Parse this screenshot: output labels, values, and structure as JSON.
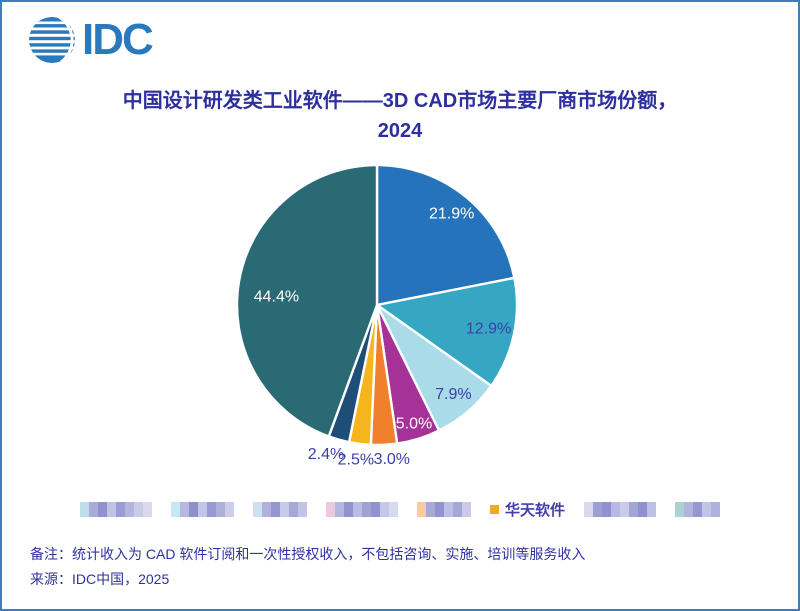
{
  "logo": {
    "text": "IDC",
    "color": "#2979be"
  },
  "title": {
    "line1": "中国设计研发类工业软件——3D CAD市场主要厂商市场份额，",
    "line2": "2024",
    "color": "#2e2f9e"
  },
  "chart_data": {
    "type": "pie",
    "title": "中国设计研发类工业软件——3D CAD市场主要厂商市场份额，2024",
    "unit": "%",
    "start_angle_deg": 0,
    "direction": "clockwise",
    "total": 100.0,
    "slices": [
      {
        "name": "censored-vendor-1",
        "value": 21.9,
        "label": "21.9%",
        "color": "#2574BB",
        "label_color": "#FFFFFF",
        "label_r": 0.84
      },
      {
        "name": "censored-vendor-2",
        "value": 12.9,
        "label": "12.9%",
        "color": "#35A7C3",
        "label_color": "#3B3FA9",
        "label_r": 0.815
      },
      {
        "name": "censored-vendor-3",
        "value": 7.9,
        "label": "7.9%",
        "color": "#A9DBE8",
        "label_color": "#3B3FA9",
        "label_r": 0.84
      },
      {
        "name": "censored-vendor-4",
        "value": 5.0,
        "label": "5.0%",
        "color": "#A53397",
        "label_color": "#FFFFFF",
        "label_r": 0.89
      },
      {
        "name": "censored-vendor-5",
        "value": 3.0,
        "label": "3.0%",
        "color": "#F0802C",
        "label_color": "#3B3FA9",
        "label_r": 1.105,
        "label_dx": 7
      },
      {
        "name": "华天软件",
        "value": 2.5,
        "label": "2.5%",
        "color": "#F6B51C",
        "label_color": "#3B3FA9",
        "label_r": 1.114,
        "label_dx": -2
      },
      {
        "name": "censored-vendor-6",
        "value": 2.4,
        "label": "2.4%",
        "color": "#1E4D78",
        "label_color": "#3B3FA9",
        "label_r": 1.125,
        "label_dx": -8,
        "label_dy": -2
      },
      {
        "name": "censored-vendor-7",
        "value": 44.4,
        "label": "44.4%",
        "color": "#2A6A74",
        "label_color": "#FFFFFF",
        "label_r": 0.73,
        "label_dy": 10
      }
    ],
    "legend_position": "bottom"
  },
  "legend": {
    "text_color": "#4340AC",
    "items": [
      {
        "censored": true,
        "blocks": [
          "#BFDDE9",
          "#A9ABD9",
          "#8F92CC",
          "#C0C2E6",
          "#9A9DD3",
          "#B3B5DF",
          "#C9CBE9",
          "#D9DAEF"
        ]
      },
      {
        "censored": true,
        "blocks": [
          "#C5E9F0",
          "#B6B8E1",
          "#8D90CB",
          "#C3C5E8",
          "#9799D1",
          "#AEB0DC",
          "#CDCEEB"
        ]
      },
      {
        "censored": true,
        "blocks": [
          "#CFE0F2",
          "#B0B2DD",
          "#9496CF",
          "#C8CAE9",
          "#A6A8D8",
          "#C2C4E7"
        ]
      },
      {
        "censored": true,
        "blocks": [
          "#ECC9DD",
          "#B4B6E0",
          "#9093CD",
          "#BABCE4",
          "#A0A2D5",
          "#8F92CC",
          "#C6C8EA",
          "#D8D9EF"
        ]
      },
      {
        "censored": true,
        "blocks": [
          "#F6CDA0",
          "#A7A9D8",
          "#9093CD",
          "#BCBEE5",
          "#A5A7D7",
          "#C9CBE9"
        ]
      },
      {
        "censored": false,
        "label": "华天软件",
        "marker_color": "#F0A82F"
      },
      {
        "censored": true,
        "blocks": [
          "#D9DAEE",
          "#9C9ED4",
          "#8F92CC",
          "#B7B9E2",
          "#C9CBE9",
          "#A3A5D6",
          "#8F92CC",
          "#BDBFE5"
        ]
      },
      {
        "censored": true,
        "blocks": [
          "#ABD3CD",
          "#B2B4DE",
          "#9598D0",
          "#C2C4E7",
          "#B0B2DD"
        ]
      }
    ]
  },
  "notes": {
    "line1": "备注：统计收入为 CAD 软件订阅和一次性授权收入，不包括咨询、实施、培训等服务收入",
    "line2": "来源：IDC中国，2025"
  }
}
